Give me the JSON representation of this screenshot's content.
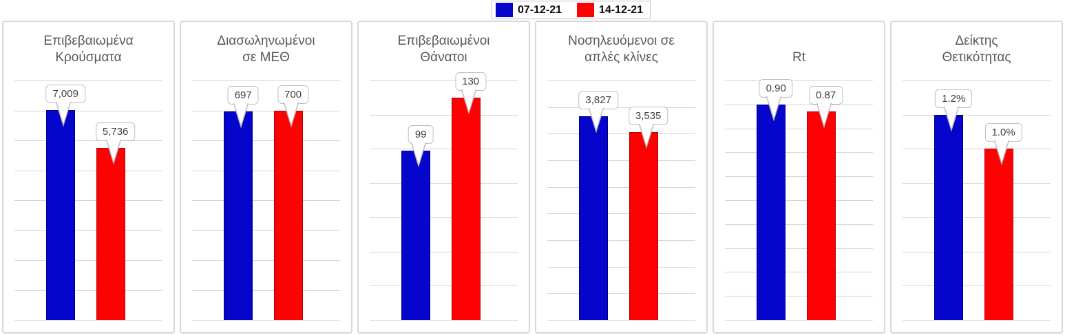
{
  "legend": {
    "entries": [
      {
        "label": "07-12-21",
        "color": "#0505cb",
        "border": "#00008b"
      },
      {
        "label": "14-12-21",
        "color": "#fc0202",
        "border": "#b40000"
      }
    ]
  },
  "colors": {
    "gridline": "#d4d4d4",
    "panel_border": "#d7d7d7",
    "title_text": "#595959",
    "label_text": "#404040",
    "callout_border": "#bfbfbf",
    "background": "#ffffff"
  },
  "chart_data": [
    {
      "type": "bar",
      "title": "Επιβεβαιωμένα\nΚρούσματα",
      "categories": [
        "07-12-21",
        "14-12-21"
      ],
      "values": [
        7009,
        5736
      ],
      "labels": [
        "7,009",
        "5,736"
      ],
      "ylim": [
        0,
        8000
      ],
      "gridline_step": 1000,
      "grid": true,
      "legend_position": "top-center-shared"
    },
    {
      "type": "bar",
      "title": "Διασωληνωμένοι\nσε ΜΕΘ",
      "categories": [
        "07-12-21",
        "14-12-21"
      ],
      "values": [
        697,
        700
      ],
      "labels": [
        "697",
        "700"
      ],
      "ylim": [
        0,
        800
      ],
      "gridline_step": 100,
      "grid": true
    },
    {
      "type": "bar",
      "title": "Επιβεβαιωμένοι\nΘάνατοι",
      "categories": [
        "07-12-21",
        "14-12-21"
      ],
      "values": [
        99,
        130
      ],
      "labels": [
        "99",
        "130"
      ],
      "ylim": [
        0,
        140
      ],
      "gridline_step": 20,
      "grid": true
    },
    {
      "type": "bar",
      "title": "Νοσηλευόμενοι σε\nαπλές κλίνες",
      "categories": [
        "07-12-21",
        "14-12-21"
      ],
      "values": [
        3827,
        3535
      ],
      "labels": [
        "3,827",
        "3,535"
      ],
      "ylim": [
        0,
        4500
      ],
      "gridline_step": 500,
      "grid": true
    },
    {
      "type": "bar",
      "title": "Rt",
      "categories": [
        "07-12-21",
        "14-12-21"
      ],
      "values": [
        0.9,
        0.87
      ],
      "labels": [
        "0.90",
        "0.87"
      ],
      "ylim": [
        0,
        1.0
      ],
      "gridline_step": 0.1,
      "grid": true
    },
    {
      "type": "bar",
      "title": "Δείκτης\nΘετικότητας",
      "categories": [
        "07-12-21",
        "14-12-21"
      ],
      "values": [
        1.2,
        1.0
      ],
      "labels": [
        "1.2%",
        "1.0%"
      ],
      "ylim": [
        0,
        1.4
      ],
      "gridline_step": 0.2,
      "grid": true
    }
  ]
}
